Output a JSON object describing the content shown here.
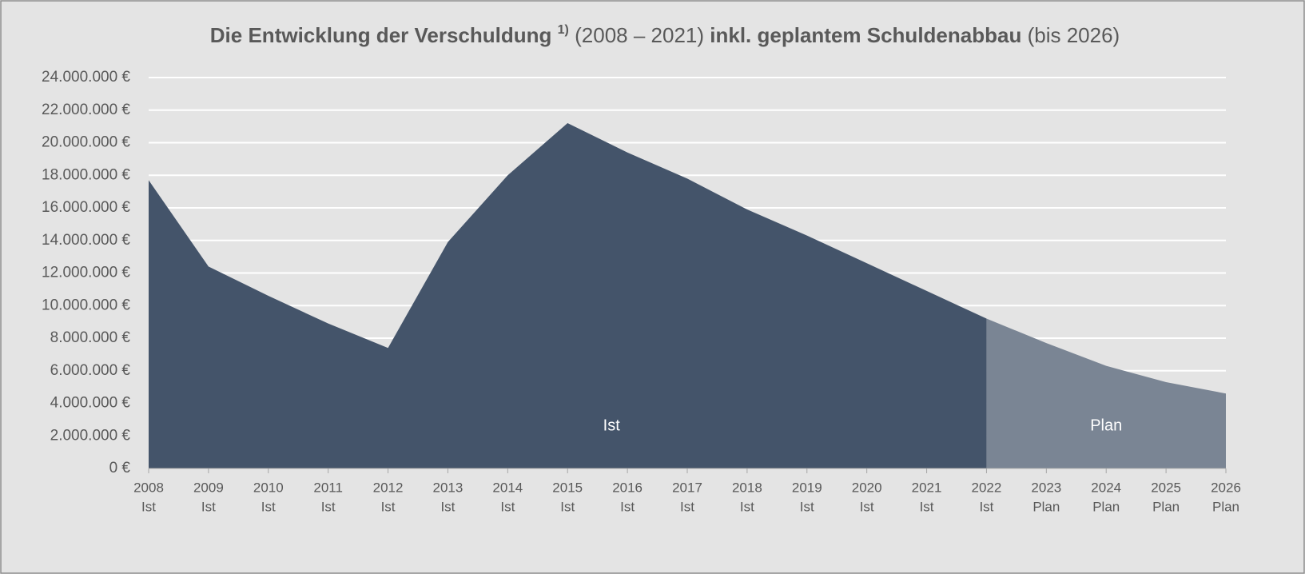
{
  "chart_data": {
    "type": "area",
    "title_parts": [
      "Die Entwicklung der Verschuldung",
      "1)",
      "(2008 – 2021)",
      "inkl. geplantem Schuldenabbau",
      "(bis 2026)"
    ],
    "categories": [
      "2008",
      "2009",
      "2010",
      "2011",
      "2012",
      "2013",
      "2014",
      "2015",
      "2016",
      "2017",
      "2018",
      "2019",
      "2020",
      "2021",
      "2022",
      "2023",
      "2024",
      "2025",
      "2026"
    ],
    "category_phases": [
      "Ist",
      "Ist",
      "Ist",
      "Ist",
      "Ist",
      "Ist",
      "Ist",
      "Ist",
      "Ist",
      "Ist",
      "Ist",
      "Ist",
      "Ist",
      "Ist",
      "Ist",
      "Plan",
      "Plan",
      "Plan",
      "Plan"
    ],
    "series": [
      {
        "name": "Ist",
        "color": "#44546a",
        "values": [
          17700000,
          12400000,
          10600000,
          8900000,
          7400000,
          13900000,
          18000000,
          21200000,
          19400000,
          17800000,
          15900000,
          14300000,
          12600000,
          10900000,
          9200000,
          null,
          null,
          null,
          null
        ]
      },
      {
        "name": "Plan",
        "color": "#7a8594",
        "values": [
          null,
          null,
          null,
          null,
          null,
          null,
          null,
          null,
          null,
          null,
          null,
          null,
          null,
          null,
          9200000,
          7700000,
          6300000,
          5300000,
          4600000
        ]
      }
    ],
    "ylim": [
      0,
      24000000
    ],
    "yticks": [
      {
        "value": 0,
        "label": "0 €"
      },
      {
        "value": 2000000,
        "label": "2.000.000 €"
      },
      {
        "value": 4000000,
        "label": "4.000.000 €"
      },
      {
        "value": 6000000,
        "label": "6.000.000 €"
      },
      {
        "value": 8000000,
        "label": "8.000.000 €"
      },
      {
        "value": 10000000,
        "label": "10.000.000 €"
      },
      {
        "value": 12000000,
        "label": "12.000.000 €"
      },
      {
        "value": 14000000,
        "label": "14.000.000 €"
      },
      {
        "value": 16000000,
        "label": "16.000.000 €"
      },
      {
        "value": 18000000,
        "label": "18.000.000 €"
      },
      {
        "value": 20000000,
        "label": "20.000.000 €"
      },
      {
        "value": 22000000,
        "label": "22.000.000 €"
      },
      {
        "value": 24000000,
        "label": "24.000.000 €"
      }
    ],
    "grid": true
  }
}
